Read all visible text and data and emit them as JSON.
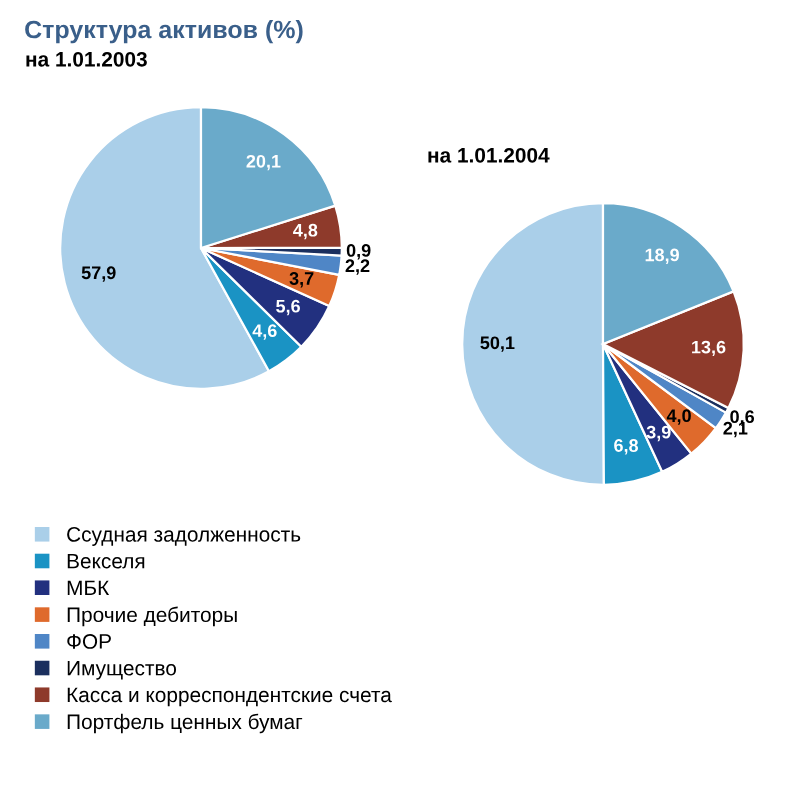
{
  "chart_data": [
    {
      "type": "pie",
      "title": "Структура активов (%)",
      "subtitle": "на 1.01.2003",
      "legend": "bottom",
      "categories": [
        "Ссудная задолженность",
        "Векселя",
        "МБК",
        "Прочие дебиторы",
        "ФОР",
        "Имущество",
        "Касса и корреспондентские счета",
        "Портфель ценных бумаг"
      ],
      "values": [
        57.9,
        4.6,
        5.6,
        3.7,
        2.2,
        0.9,
        4.8,
        20.1
      ],
      "value_labels": [
        "57,9",
        "4,6",
        "5,6",
        "3,7",
        "2,2",
        "0,9",
        "4,8",
        "20,1"
      ],
      "colors": [
        "#aacfe9",
        "#1a93c4",
        "#22307f",
        "#df6a2c",
        "#4f86c6",
        "#1b2f5e",
        "#8e3a2b",
        "#6aaaca"
      ]
    },
    {
      "type": "pie",
      "title": "на 1.01.2004",
      "values": [
        50.1,
        6.8,
        3.9,
        4.0,
        2.1,
        0.6,
        13.6,
        18.9
      ],
      "value_labels": [
        "50,1",
        "6,8",
        "3,9",
        "4,0",
        "2,1",
        "0,6",
        "13,6",
        "18,9"
      ],
      "colors": [
        "#aacfe9",
        "#1a93c4",
        "#22307f",
        "#df6a2c",
        "#4f86c6",
        "#1b2f5e",
        "#8e3a2b",
        "#6aaaca"
      ]
    }
  ]
}
